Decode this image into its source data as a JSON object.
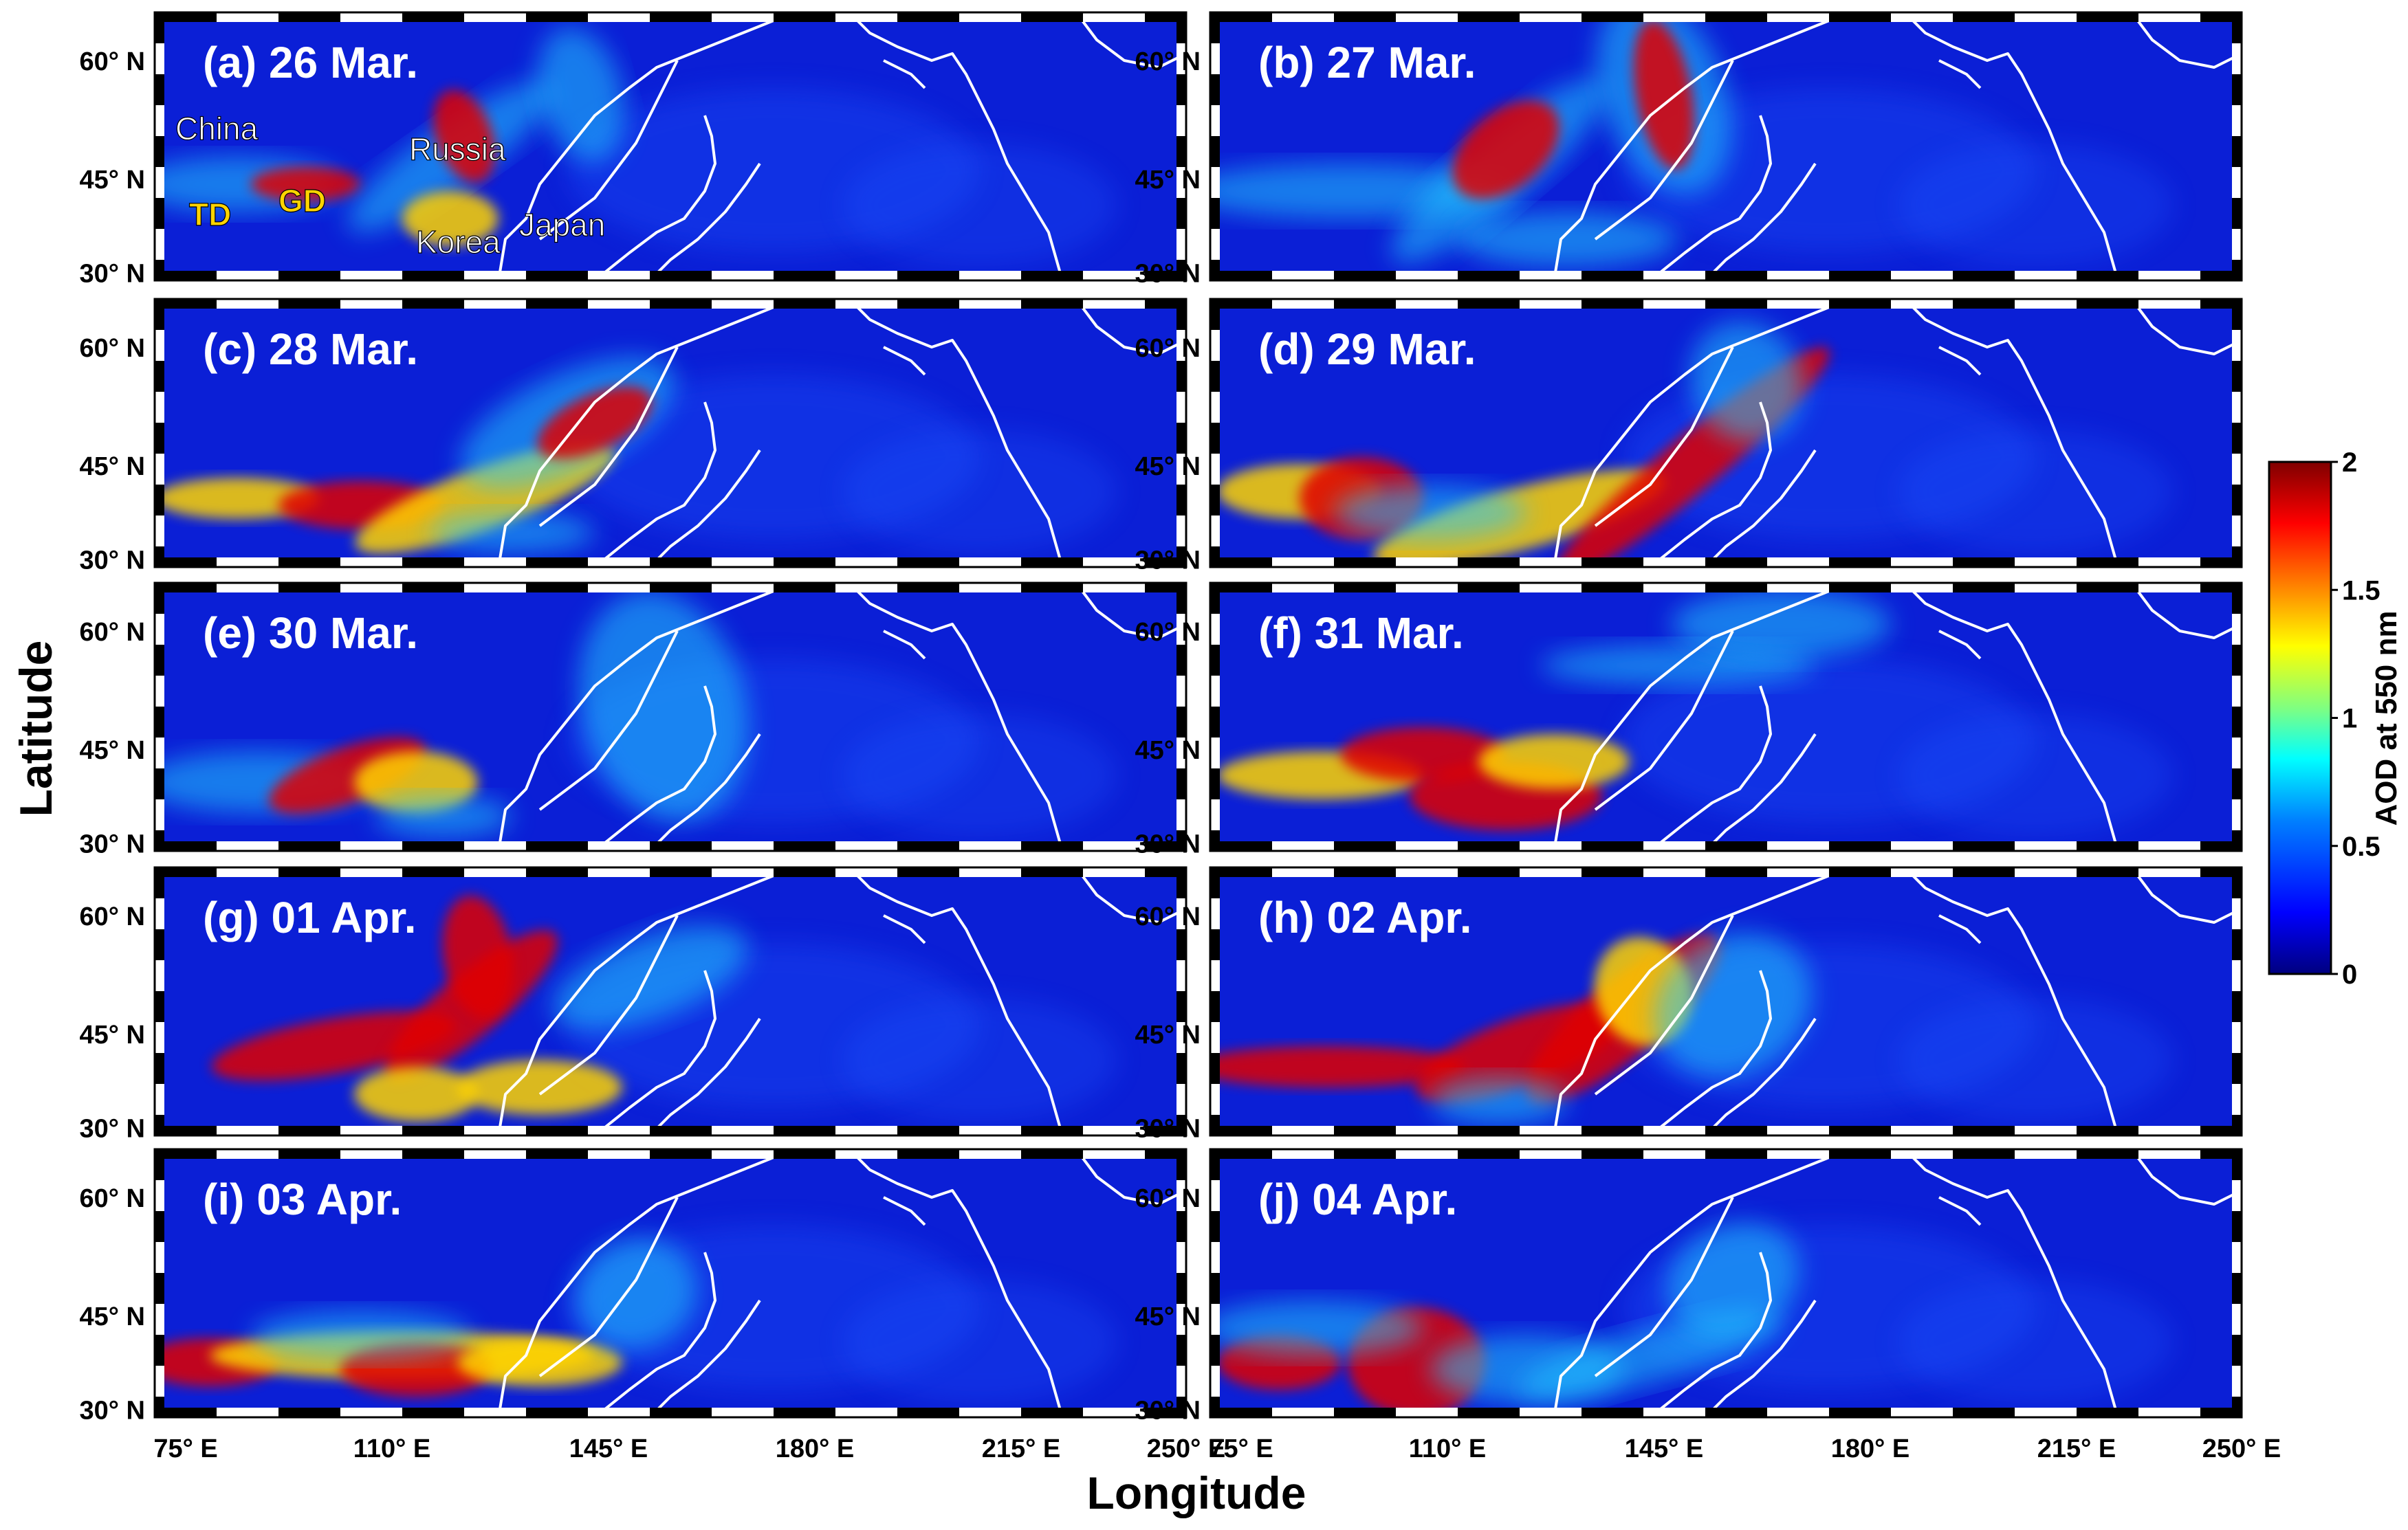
{
  "figure": {
    "x_axis_label": "Longitude",
    "y_axis_label": "Latitude",
    "longitude_ticks": [
      "75° E",
      "110° E",
      "145° E",
      "180° E",
      "215° E",
      "250° E"
    ],
    "latitude_ticks": [
      "60° N",
      "45° N",
      "30° N"
    ]
  },
  "colorbar": {
    "label": "AOD at 550 nm",
    "ticks": [
      "2",
      "1.5",
      "1",
      "0.5",
      "0"
    ],
    "min": 0,
    "max": 2,
    "colors": [
      "#00007f",
      "#0000ff",
      "#0080ff",
      "#00ffff",
      "#80ff80",
      "#ffff00",
      "#ff8000",
      "#ff0000",
      "#7f0000"
    ]
  },
  "annotations": {
    "china": "China",
    "russia": "Russia",
    "td": "TD",
    "gd": "GD",
    "korea": "Korea",
    "japan": "Japan"
  },
  "panels": [
    {
      "id": "a",
      "title": "(a) 26 Mar."
    },
    {
      "id": "b",
      "title": "(b) 27 Mar."
    },
    {
      "id": "c",
      "title": "(c) 28 Mar."
    },
    {
      "id": "d",
      "title": "(d) 29 Mar."
    },
    {
      "id": "e",
      "title": "(e) 30 Mar."
    },
    {
      "id": "f",
      "title": "(f) 31 Mar."
    },
    {
      "id": "g",
      "title": "(g) 01 Apr."
    },
    {
      "id": "h",
      "title": "(h) 02 Apr."
    },
    {
      "id": "i",
      "title": "(i) 03 Apr."
    },
    {
      "id": "j",
      "title": "(j) 04 Apr."
    }
  ],
  "colors": {
    "map_background": "#0b1fd6",
    "coastline": "#ffffff",
    "dust_low": "#23c8ff",
    "dust_mid": "#ffd400",
    "dust_high": "#e00000",
    "frame": "#000000"
  }
}
